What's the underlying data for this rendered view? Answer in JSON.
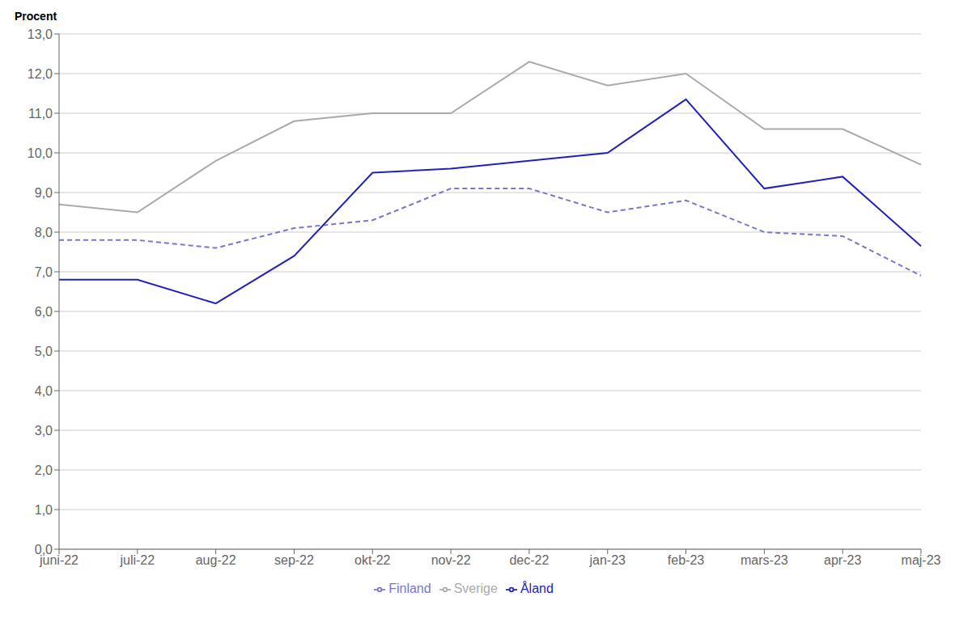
{
  "chart_data": {
    "type": "line",
    "y_label": "Procent",
    "categories": [
      "juni-22",
      "juli-22",
      "aug-22",
      "sep-22",
      "okt-22",
      "nov-22",
      "dec-22",
      "jan-23",
      "feb-23",
      "mars-23",
      "apr-23",
      "maj-23"
    ],
    "series": [
      {
        "name": "Sverige",
        "color": "#aaaaaa",
        "line_style": "solid",
        "values": [
          8.7,
          8.5,
          9.8,
          10.8,
          11.0,
          11.0,
          12.3,
          11.7,
          12.0,
          10.6,
          10.6,
          9.7
        ]
      },
      {
        "name": "Finland",
        "color": "#7777cc",
        "line_style": "dashed",
        "values": [
          7.8,
          7.8,
          7.6,
          8.1,
          8.3,
          9.1,
          9.1,
          8.5,
          8.8,
          8.0,
          7.9,
          6.9
        ]
      },
      {
        "name": "Åland",
        "color": "#2222bb",
        "line_style": "solid",
        "values": [
          6.8,
          6.8,
          6.2,
          7.4,
          9.5,
          9.6,
          9.8,
          10.0,
          11.35,
          9.1,
          9.4,
          7.65
        ]
      }
    ],
    "ylim": [
      0,
      13
    ],
    "yticks": [
      {
        "value": 0,
        "label": "0,0"
      },
      {
        "value": 1,
        "label": "1,0"
      },
      {
        "value": 2,
        "label": "2,0"
      },
      {
        "value": 3,
        "label": "3,0"
      },
      {
        "value": 4,
        "label": "4,0"
      },
      {
        "value": 5,
        "label": "5,0"
      },
      {
        "value": 6,
        "label": "6,0"
      },
      {
        "value": 7,
        "label": "7,0"
      },
      {
        "value": 8,
        "label": "8,0"
      },
      {
        "value": 9,
        "label": "9,0"
      },
      {
        "value": 10,
        "label": "10,0"
      },
      {
        "value": 11,
        "label": "11,0"
      },
      {
        "value": 12,
        "label": "12,0"
      },
      {
        "value": 13,
        "label": "13,0"
      }
    ],
    "grid": true,
    "legend": "bottom"
  }
}
